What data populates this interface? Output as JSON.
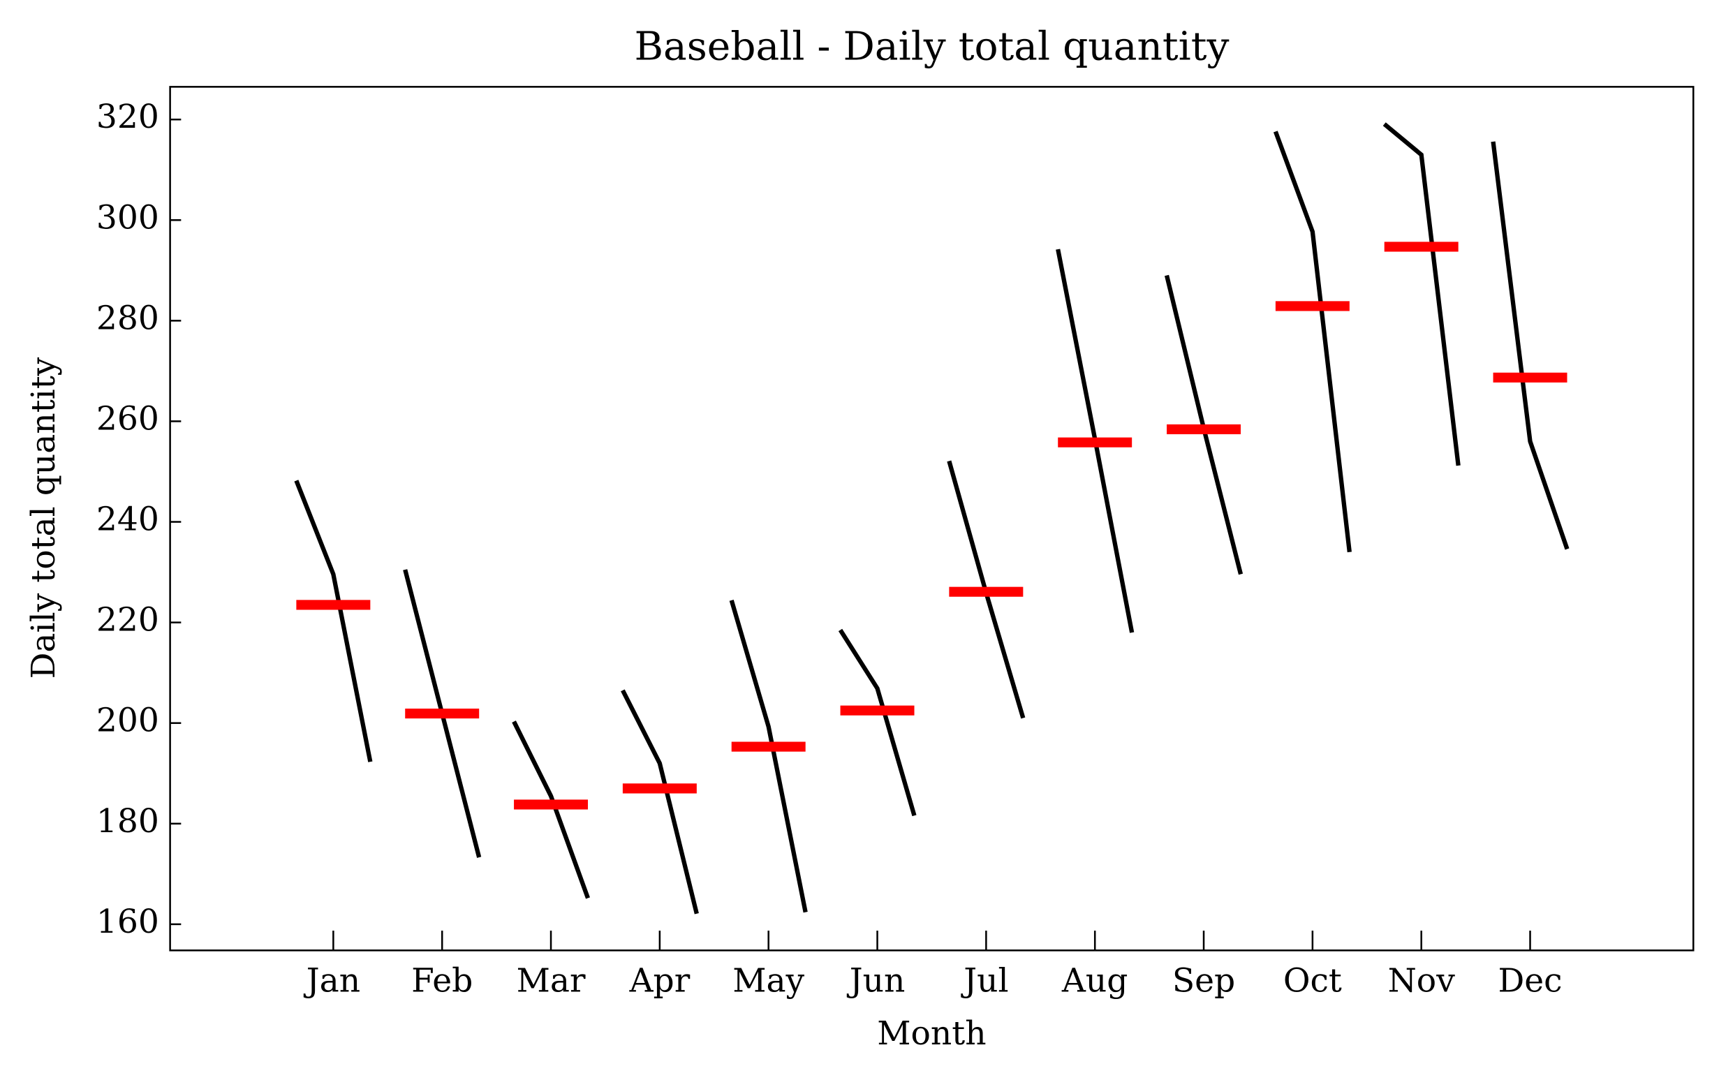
{
  "chart_data": {
    "type": "monthplot",
    "title": "Baseball - Daily total quantity",
    "xlabel": "Month",
    "ylabel": "Daily total quantity",
    "categories": [
      "Jan",
      "Feb",
      "Mar",
      "Apr",
      "May",
      "Jun",
      "Jul",
      "Aug",
      "Sep",
      "Oct",
      "Nov",
      "Dec"
    ],
    "values": [
      [
        248.2,
        229.6,
        192.3
      ],
      [
        230.5,
        201.9,
        173.3
      ],
      [
        200.3,
        185.5,
        165.2
      ],
      [
        206.5,
        192.0,
        162.1
      ],
      [
        224.4,
        199.3,
        162.4
      ],
      [
        218.5,
        206.9,
        181.6
      ],
      [
        252.1,
        225.9,
        201.0
      ],
      [
        294.2,
        256.5,
        218.0
      ],
      [
        289.0,
        258.6,
        229.6
      ],
      [
        317.6,
        297.7,
        234.0
      ],
      [
        319.1,
        313.0,
        251.2
      ],
      [
        315.6,
        256.0,
        234.6
      ]
    ],
    "means": [
      223.5,
      201.9,
      183.8,
      187.0,
      195.3,
      202.5,
      226.1,
      255.8,
      258.4,
      282.9,
      294.7,
      268.7
    ],
    "color": "#000000",
    "mean_color": "#ff0000",
    "ylim": [
      154.8,
      326.5
    ],
    "yticks": [
      160,
      180,
      200,
      220,
      240,
      260,
      280,
      300,
      320
    ]
  }
}
